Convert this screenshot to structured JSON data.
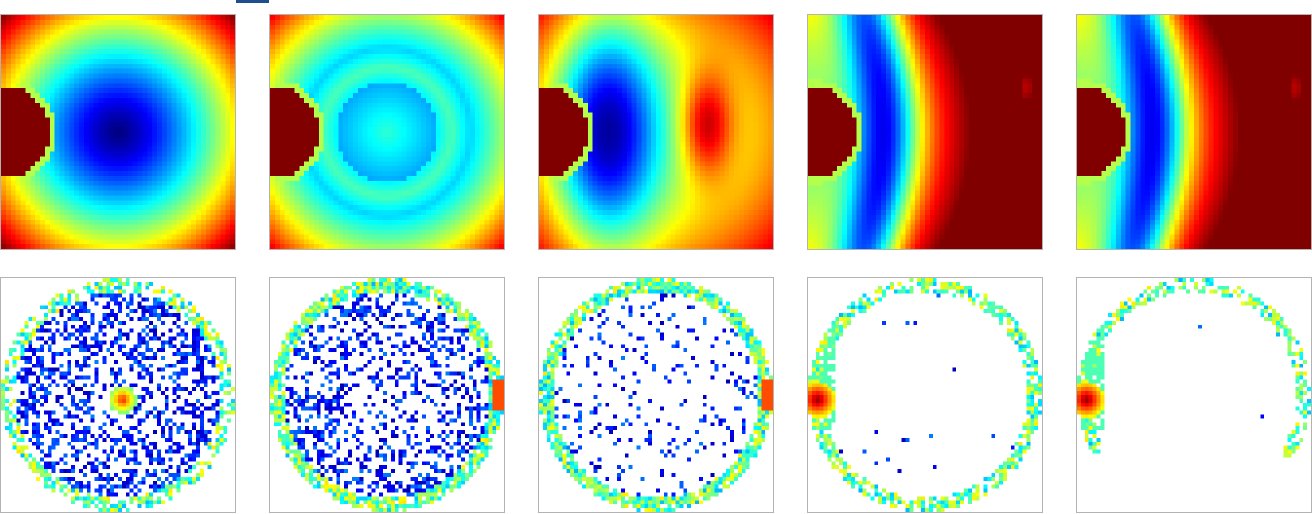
{
  "figure": {
    "rows": 2,
    "cols": 5,
    "colormap": "jet",
    "panel_background": "#ffffff",
    "panel_border_color": "#b3b3b3",
    "accent_mark_color": "#1f4e8f"
  },
  "top_row": {
    "kind": "potential-field-heatmaps",
    "panels": [
      {
        "index": 1,
        "source_side": "left",
        "source_level": 1.0,
        "trough_level": 0.0,
        "trough_position": "center",
        "hot_region": "none"
      },
      {
        "index": 2,
        "source_side": "left",
        "source_level": 1.0,
        "trough_level": 0.05,
        "trough_position": "ring",
        "hot_region": "weak-center"
      },
      {
        "index": 3,
        "source_side": "left",
        "source_level": 1.0,
        "trough_level": 0.1,
        "trough_position": "left",
        "hot_region": "right-center"
      },
      {
        "index": 4,
        "source_side": "left",
        "source_level": 1.0,
        "trough_level": 0.15,
        "trough_position": "left-band",
        "hot_region": "right-half"
      },
      {
        "index": 5,
        "source_side": "left",
        "source_level": 1.0,
        "trough_level": 0.15,
        "trough_position": "left-band",
        "hot_region": "right-half"
      }
    ]
  },
  "bottom_row": {
    "kind": "particle-density-heatmaps",
    "panels": [
      {
        "index": 1,
        "fill_density": 0.55,
        "ring_density": 0.6,
        "arc_coverage": "full",
        "hotspot": "center"
      },
      {
        "index": 2,
        "fill_density": 0.45,
        "ring_density": 0.85,
        "arc_coverage": "full",
        "hotspot": "right-edge"
      },
      {
        "index": 3,
        "fill_density": 0.15,
        "ring_density": 0.9,
        "arc_coverage": "full",
        "hotspot": "right-edge"
      },
      {
        "index": 4,
        "fill_density": 0.01,
        "ring_density": 0.7,
        "arc_coverage": "full",
        "hotspot": "left-edge"
      },
      {
        "index": 5,
        "fill_density": 0.005,
        "ring_density": 0.6,
        "arc_coverage": "partial-left-top",
        "hotspot": "left-edge"
      }
    ]
  }
}
